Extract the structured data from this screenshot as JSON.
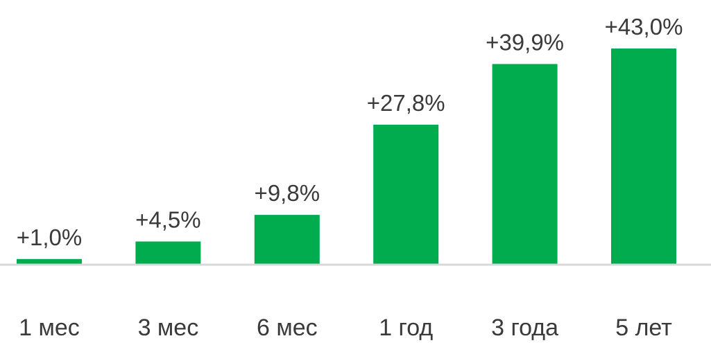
{
  "chart_data": {
    "type": "bar",
    "categories": [
      "1 мес",
      "3 мес",
      "6 мес",
      "1 год",
      "3 года",
      "5 лет"
    ],
    "values": [
      1.0,
      4.5,
      9.8,
      27.8,
      39.9,
      43.0
    ],
    "data_labels": [
      "+1,0%",
      "+4,5%",
      "+9,8%",
      "+27,8%",
      "+39,9%",
      "+43,0%"
    ],
    "title": "",
    "xlabel": "",
    "ylabel": "",
    "ylim": [
      0,
      43
    ],
    "grid": false,
    "legend": "none",
    "bar_color": "#00AC4E",
    "baseline_color": "#D9D9D9",
    "text_color": "#3A3A3A"
  }
}
